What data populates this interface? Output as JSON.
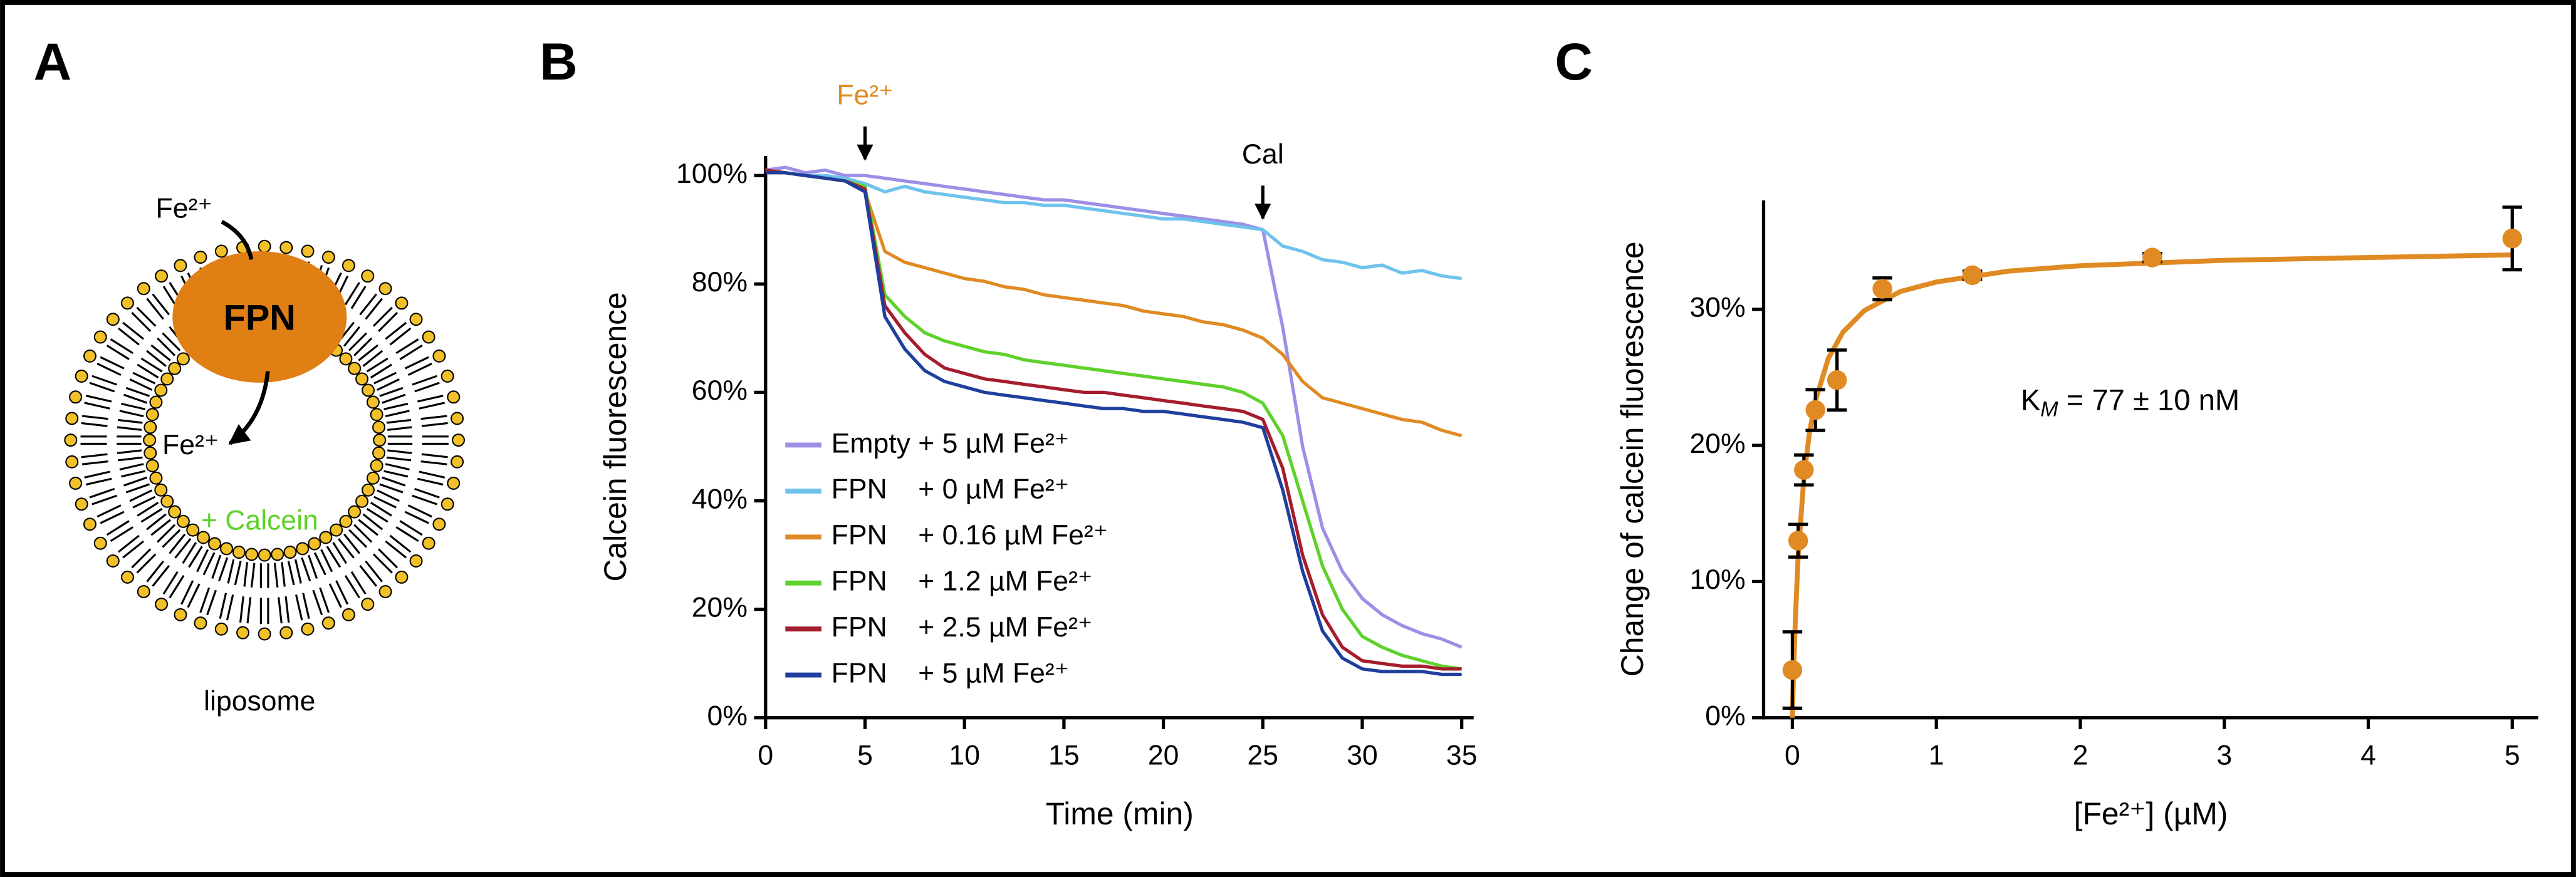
{
  "panels": [
    "A",
    "B",
    "C"
  ],
  "diagram": {
    "ion_in": "Fe²⁺",
    "transporter": "FPN",
    "ion_out": "Fe²⁺",
    "content": "+ Calcein",
    "vesicle": "liposome"
  },
  "chart_data": [
    {
      "type": "line",
      "x_label": "Time (min)",
      "y_label": "Calcein fluorescence",
      "x": [
        0,
        1,
        2,
        3,
        4,
        5,
        6,
        7,
        8,
        9,
        10,
        11,
        12,
        13,
        14,
        15,
        16,
        17,
        18,
        19,
        20,
        21,
        22,
        23,
        24,
        25,
        26,
        27,
        28,
        29,
        30,
        31,
        32,
        33,
        34,
        35
      ],
      "series": [
        {
          "name": "Empty + 5 µM Fe²⁺",
          "color": "#9b8fe6",
          "values": [
            101,
            101.5,
            100.5,
            101,
            100,
            100,
            99.5,
            99,
            98.5,
            98,
            97.5,
            97,
            96.5,
            96,
            95.5,
            95.5,
            95,
            94.5,
            94,
            93.5,
            93,
            92.5,
            92,
            91.5,
            91,
            90,
            72,
            50,
            35,
            27,
            22,
            19,
            17,
            15.5,
            14.5,
            13
          ]
        },
        {
          "name": "FPN    + 0 µM Fe²⁺",
          "color": "#6ec3ec",
          "values": [
            101,
            100.5,
            100,
            100,
            99.5,
            98.5,
            97,
            98,
            97,
            96.5,
            96,
            95.5,
            95,
            95,
            94.5,
            94.5,
            94,
            93.5,
            93,
            92.5,
            92,
            92,
            91.5,
            91,
            90.5,
            90,
            87,
            86,
            84.5,
            84,
            83,
            83.5,
            82,
            82.5,
            81.5,
            81
          ]
        },
        {
          "name": "FPN    + 0.16 µM Fe²⁺",
          "color": "#e08a24",
          "values": [
            101,
            100.5,
            100,
            99.5,
            99,
            97,
            86,
            84,
            83,
            82,
            81,
            80.5,
            79.5,
            79,
            78,
            77.5,
            77,
            76.5,
            76,
            75,
            74.5,
            74,
            73,
            72.5,
            71.5,
            70,
            67,
            62,
            59,
            58,
            57,
            56,
            55,
            54.5,
            53,
            52
          ]
        },
        {
          "name": "FPN    + 1.2 µM Fe²⁺",
          "color": "#5fd12c",
          "values": [
            101,
            100.5,
            100,
            99.5,
            99,
            98,
            78,
            74,
            71,
            69.5,
            68.5,
            67.5,
            67,
            66,
            65.5,
            65,
            64.5,
            64,
            63.5,
            63,
            62.5,
            62,
            61.5,
            61,
            60,
            58,
            52,
            40,
            28,
            20,
            15,
            13,
            11.5,
            10.5,
            9.5,
            9
          ]
        },
        {
          "name": "FPN    + 2.5 µM Fe²⁺",
          "color": "#a51d2d",
          "values": [
            101,
            100.5,
            100,
            99.5,
            99,
            97.5,
            76,
            71,
            67,
            64.5,
            63.5,
            62.5,
            62,
            61.5,
            61,
            60.5,
            60,
            60,
            59.5,
            59,
            58.5,
            58,
            57.5,
            57,
            56.5,
            55,
            46,
            30,
            19,
            13,
            10.5,
            10,
            9.5,
            9.5,
            9,
            9
          ]
        },
        {
          "name": "FPN    + 5 µM Fe²⁺",
          "color": "#1f3f9e",
          "values": [
            100.5,
            100.5,
            100,
            99.5,
            99,
            97,
            74,
            68,
            64,
            62,
            61,
            60,
            59.5,
            59,
            58.5,
            58,
            57.5,
            57,
            57,
            56.5,
            56.5,
            56,
            55.5,
            55,
            54.5,
            53.5,
            42,
            27,
            16,
            11,
            9,
            8.5,
            8.5,
            8.5,
            8,
            8
          ]
        }
      ],
      "xlim": [
        0,
        35.6
      ],
      "xticks": [
        0,
        5,
        10,
        15,
        20,
        25,
        30,
        35
      ],
      "ylim": [
        0,
        103.6
      ],
      "yticks": [
        {
          "value": 0,
          "label": "0%"
        },
        {
          "value": 20,
          "label": "20%"
        },
        {
          "value": 40,
          "label": "40%"
        },
        {
          "value": 60,
          "label": "60%"
        },
        {
          "value": 80,
          "label": "80%"
        },
        {
          "value": 100,
          "label": "100%"
        }
      ],
      "legend": "lower left",
      "annotations": [
        {
          "text": "Fe²⁺",
          "x": 5,
          "color": "#e08a24"
        },
        {
          "text": "Cal",
          "x": 25,
          "color": "#000000"
        }
      ]
    },
    {
      "type": "scatter",
      "x_label": "[Fe²⁺] (µM)",
      "y_label": "Change of calcein fluorescence",
      "color": "#e08a24",
      "x": [
        0,
        0.04,
        0.08,
        0.16,
        0.31,
        0.625,
        1.25,
        2.5,
        5
      ],
      "values": [
        3.5,
        13,
        18.2,
        22.6,
        24.8,
        31.5,
        32.5,
        33.8,
        35.2
      ],
      "errors": [
        2.8,
        1.2,
        1.1,
        1.5,
        2.2,
        0.8,
        0.3,
        0.3,
        2.3
      ],
      "fit": {
        "x": [
          0,
          0.01,
          0.02,
          0.04,
          0.08,
          0.12,
          0.16,
          0.25,
          0.35,
          0.5,
          0.75,
          1,
          1.5,
          2,
          3,
          4,
          5
        ],
        "values": [
          0,
          3.97,
          7.11,
          11.8,
          17.6,
          21,
          23.3,
          26.4,
          28.3,
          29.9,
          31.3,
          32,
          32.8,
          33.2,
          33.6,
          33.8,
          34
        ]
      },
      "xlim": [
        -0.2,
        5.18
      ],
      "xticks": [
        0,
        1,
        2,
        3,
        4,
        5
      ],
      "ylim": [
        0,
        38
      ],
      "yticks": [
        {
          "value": 0,
          "label": "0%"
        },
        {
          "value": 10,
          "label": "10%"
        },
        {
          "value": 20,
          "label": "20%"
        },
        {
          "value": 30,
          "label": "30%"
        }
      ],
      "annotation": {
        "symbol": "K",
        "subscript": "M",
        "text": " = 77 ± 10 nM"
      }
    }
  ]
}
